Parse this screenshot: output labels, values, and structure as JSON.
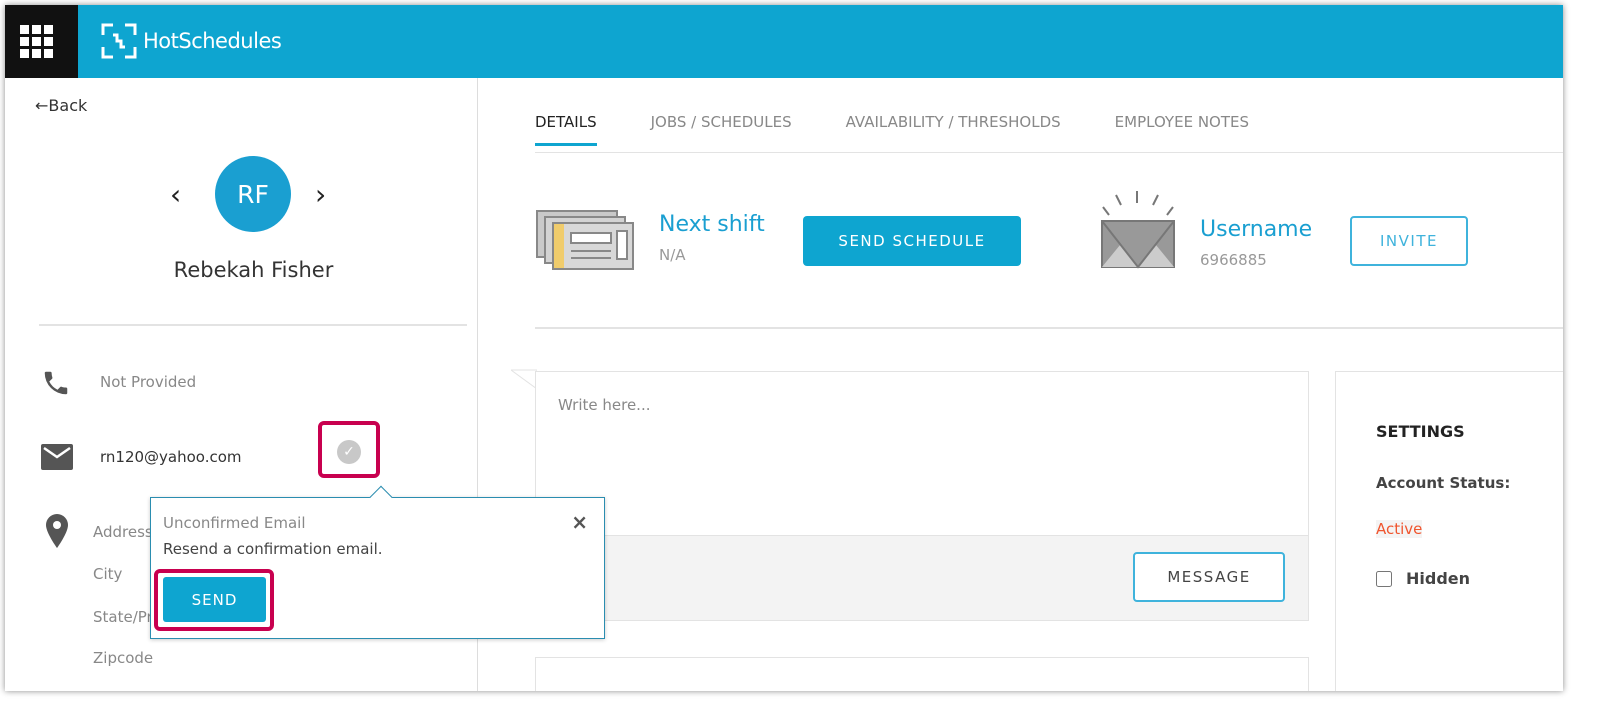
{
  "header": {
    "brand": "HotSchedules",
    "apps_icon": "grid-icon",
    "color": "#0ea5d0"
  },
  "profile": {
    "back_label": "Back",
    "initials": "RF",
    "name": "Rebekah Fisher",
    "phone": "Not Provided",
    "email": "rn120@yahoo.com",
    "address_label": "Address",
    "city_label": "City",
    "state_label": "State/Province",
    "zip_label": "Zipcode"
  },
  "popover": {
    "title": "Unconfirmed Email",
    "text": "Resend a confirmation email.",
    "send_label": "SEND",
    "highlight_color": "#c8004f"
  },
  "tabs": [
    {
      "label": "DETAILS",
      "active": true
    },
    {
      "label": "JOBS / SCHEDULES"
    },
    {
      "label": "AVAILABILITY / THRESHOLDS"
    },
    {
      "label": "EMPLOYEE NOTES"
    }
  ],
  "shift": {
    "title": "Next shift",
    "value": "N/A",
    "button": "SEND SCHEDULE"
  },
  "username": {
    "title": "Username",
    "value": "6966885",
    "button": "INVITE"
  },
  "message": {
    "placeholder": "Write here...",
    "button": "MESSAGE"
  },
  "settings": {
    "title": "SETTINGS",
    "status_label": "Account Status:",
    "status_value": "Active",
    "status_color": "#f0552e",
    "hidden_label": "Hidden",
    "hidden_checked": false
  }
}
